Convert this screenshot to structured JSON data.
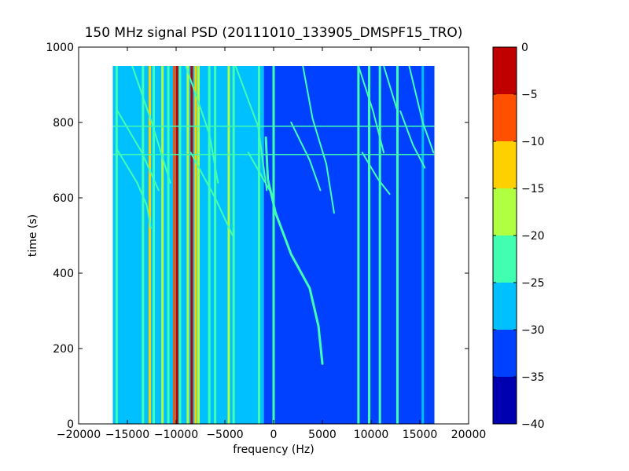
{
  "chart_data": {
    "type": "heatmap",
    "title": "150 MHz signal PSD (20111010_133905_DMSPF15_TRO)",
    "xlabel": "frequency (Hz)",
    "ylabel": "time (s)",
    "xlim": [
      -20000,
      20000
    ],
    "ylim": [
      0,
      1000
    ],
    "xticks": [
      -20000,
      -15000,
      -10000,
      -5000,
      0,
      5000,
      10000,
      15000,
      20000
    ],
    "yticks": [
      0,
      200,
      400,
      600,
      800,
      1000
    ],
    "data_extent": {
      "x": [
        -16500,
        16500
      ],
      "y": [
        0,
        950
      ]
    },
    "colorbar": {
      "levels": [
        -40,
        -35,
        -30,
        -25,
        -20,
        -15,
        -10,
        -5,
        0
      ],
      "colors": [
        "#0000b0",
        "#0040ff",
        "#00c0ff",
        "#40ffb0",
        "#b0ff40",
        "#ffd000",
        "#ff5000",
        "#c00000"
      ],
      "ticks": [
        0,
        -5,
        -10,
        -15,
        -20,
        -25,
        -30,
        -35,
        -40
      ]
    },
    "background_regions": [
      {
        "x": [
          -16500,
          -5200
        ],
        "level": -27.5
      },
      {
        "x": [
          -5200,
          -1000
        ],
        "level": -30
      },
      {
        "x": [
          -1000,
          16500
        ],
        "level": -32.5
      }
    ],
    "steady_lines": [
      {
        "freq": -16100,
        "level": -22
      },
      {
        "freq": -13400,
        "level": -24
      },
      {
        "freq": -12700,
        "level": -12
      },
      {
        "freq": -12300,
        "level": -22
      },
      {
        "freq": -11400,
        "level": -17
      },
      {
        "freq": -10800,
        "level": -24
      },
      {
        "freq": -10200,
        "level": -7
      },
      {
        "freq": -9900,
        "level": -2
      },
      {
        "freq": -9600,
        "level": -22
      },
      {
        "freq": -8800,
        "level": -17
      },
      {
        "freq": -8400,
        "level": -4
      },
      {
        "freq": -8000,
        "level": -12
      },
      {
        "freq": -7700,
        "level": -20
      },
      {
        "freq": -6600,
        "level": -22
      },
      {
        "freq": -6000,
        "level": -24
      },
      {
        "freq": -4600,
        "level": -17
      },
      {
        "freq": -4100,
        "level": -22
      },
      {
        "freq": -1500,
        "level": -24
      },
      {
        "freq": 0,
        "level": -22
      },
      {
        "freq": 8700,
        "level": -22
      },
      {
        "freq": 9800,
        "level": -24
      },
      {
        "freq": 10900,
        "level": -22
      },
      {
        "freq": 12700,
        "level": -24
      },
      {
        "freq": 15300,
        "level": -27.5
      }
    ],
    "horizontal_lines": [
      {
        "time": 790,
        "level": -22
      },
      {
        "time": 715,
        "level": -22
      }
    ],
    "drift_tracks": [
      {
        "name": "main",
        "level": -22,
        "points": [
          [
            5000,
            160
          ],
          [
            4600,
            260
          ],
          [
            3700,
            360
          ],
          [
            1800,
            450
          ],
          [
            200,
            560
          ],
          [
            -600,
            650
          ],
          [
            -800,
            760
          ]
        ]
      },
      {
        "level": -25,
        "points": [
          [
            -16100,
            730
          ],
          [
            -14000,
            640
          ],
          [
            -13000,
            580
          ],
          [
            -12600,
            520
          ]
        ]
      },
      {
        "level": -25,
        "points": [
          [
            -14500,
            950
          ],
          [
            -12500,
            800
          ],
          [
            -10600,
            640
          ]
        ]
      },
      {
        "level": -25,
        "points": [
          [
            -16000,
            830
          ],
          [
            -13500,
            720
          ],
          [
            -11800,
            620
          ]
        ]
      },
      {
        "level": -25,
        "points": [
          [
            -9000,
            950
          ],
          [
            -6600,
            770
          ],
          [
            -5700,
            640
          ]
        ]
      },
      {
        "level": -25,
        "points": [
          [
            -8500,
            720
          ],
          [
            -6000,
            600
          ],
          [
            -4200,
            500
          ]
        ]
      },
      {
        "level": -25,
        "points": [
          [
            -3900,
            950
          ],
          [
            -1600,
            790
          ],
          [
            -700,
            620
          ]
        ]
      },
      {
        "level": -25,
        "points": [
          [
            -2600,
            720
          ],
          [
            -400,
            620
          ]
        ]
      },
      {
        "level": -25,
        "points": [
          [
            3000,
            950
          ],
          [
            4000,
            810
          ],
          [
            5400,
            690
          ],
          [
            6200,
            560
          ]
        ]
      },
      {
        "level": -25,
        "points": [
          [
            1800,
            800
          ],
          [
            3700,
            700
          ],
          [
            4800,
            620
          ]
        ]
      },
      {
        "level": -25,
        "points": [
          [
            8700,
            950
          ],
          [
            10200,
            830
          ],
          [
            11300,
            720
          ]
        ]
      },
      {
        "level": -25,
        "points": [
          [
            11300,
            950
          ],
          [
            12700,
            830
          ]
        ]
      },
      {
        "level": -25,
        "points": [
          [
            13900,
            950
          ],
          [
            15300,
            800
          ],
          [
            16400,
            720
          ]
        ]
      },
      {
        "level": -25,
        "points": [
          [
            13000,
            830
          ],
          [
            14300,
            740
          ],
          [
            15500,
            680
          ]
        ]
      },
      {
        "level": -25,
        "points": [
          [
            9100,
            720
          ],
          [
            10700,
            650
          ],
          [
            11900,
            610
          ]
        ]
      }
    ]
  }
}
